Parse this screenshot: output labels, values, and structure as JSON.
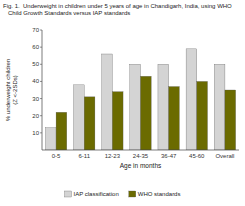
{
  "chart_data": {
    "type": "bar",
    "title": "Fig. 1.  Underweight in children under 5 years of age in Chandigarh, India, using WHO\n   Child Growth Standards versus IAP standards",
    "categories": [
      "0-5",
      "6-11",
      "12-23",
      "24-35",
      "36-47",
      "45-60",
      "Overall"
    ],
    "series": [
      {
        "name": "IAP classification",
        "color": "#d4d4d4",
        "values": [
          13,
          38,
          56,
          50,
          50,
          59,
          50
        ]
      },
      {
        "name": "WHO standards",
        "color": "#6b6b00",
        "values": [
          22,
          31,
          34,
          43,
          37,
          40,
          35
        ]
      }
    ],
    "x_label": "Age in months",
    "y_label": "% underweight children\n(Z <-2SDs)",
    "ylim": [
      0,
      70
    ],
    "yticks": [
      10,
      20,
      30,
      40,
      50,
      60,
      70
    ],
    "grid": false,
    "legend": "bottom"
  }
}
